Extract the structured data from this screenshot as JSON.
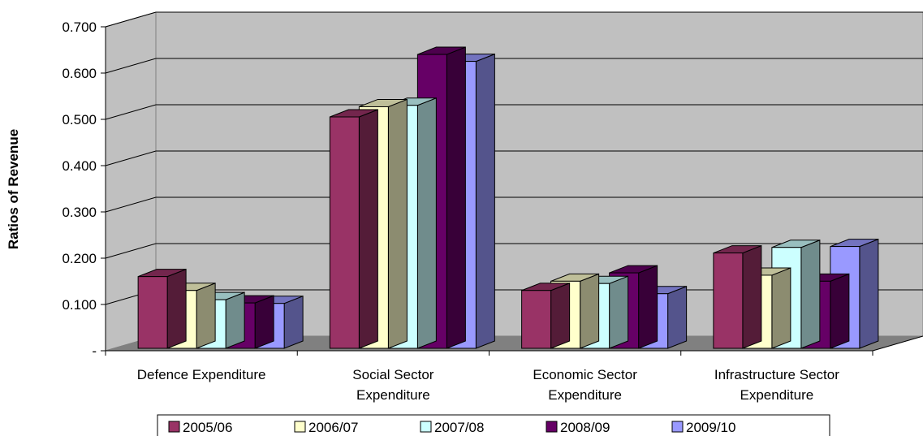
{
  "chart_data": {
    "type": "bar",
    "title": "",
    "xlabel": "",
    "ylabel": "Ratios of Revenue",
    "ylim": [
      0,
      0.7
    ],
    "y_ticks": [
      "-",
      "0.100",
      "0.200",
      "0.300",
      "0.400",
      "0.500",
      "0.600",
      "0.700"
    ],
    "categories": [
      [
        "Defence Expenditure"
      ],
      [
        "Social Sector",
        "Expenditure"
      ],
      [
        "Economic Sector",
        "Expenditure"
      ],
      [
        "Infrastructure Sector",
        "Expenditure"
      ]
    ],
    "series": [
      {
        "name": "2005/06",
        "color": "#993366",
        "values": [
          0.155,
          0.5,
          0.125,
          0.206
        ]
      },
      {
        "name": "2006/07",
        "color": "#FFFFCC",
        "values": [
          0.125,
          0.522,
          0.145,
          0.158
        ]
      },
      {
        "name": "2007/08",
        "color": "#CCFFFF",
        "values": [
          0.105,
          0.525,
          0.14,
          0.218
        ]
      },
      {
        "name": "2008/09",
        "color": "#660066",
        "values": [
          0.098,
          0.635,
          0.163,
          0.145
        ]
      },
      {
        "name": "2009/10",
        "color": "#9999FF",
        "values": [
          0.097,
          0.62,
          0.118,
          0.22
        ]
      }
    ],
    "grid": true,
    "legend": "bottom",
    "three_d": true
  }
}
